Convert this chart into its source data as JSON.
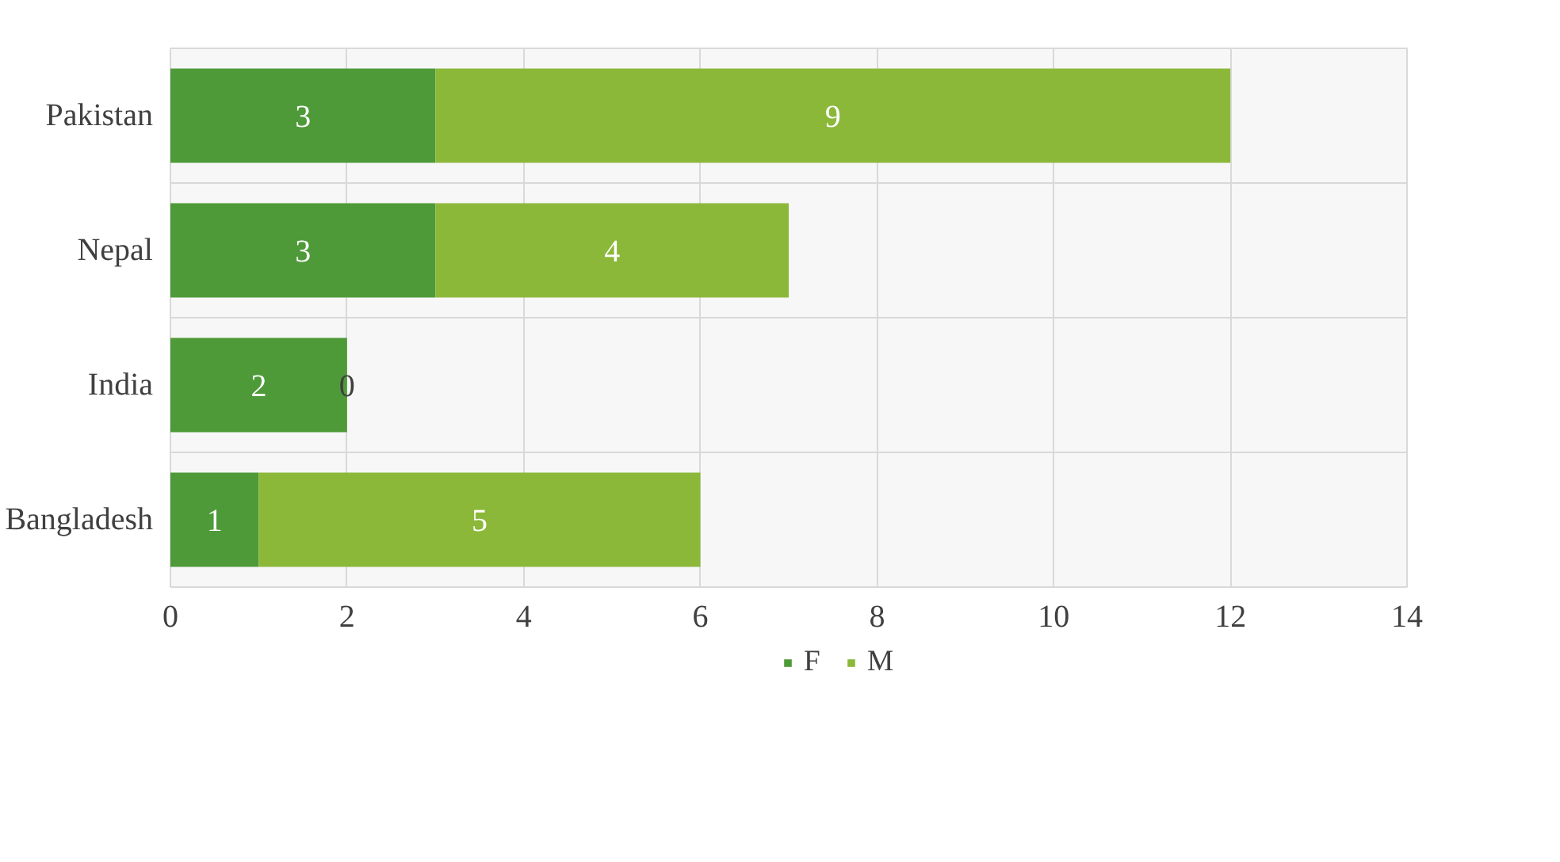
{
  "chart_data": {
    "type": "bar",
    "orientation": "horizontal",
    "stacked": true,
    "categories": [
      "Pakistan",
      "Nepal",
      "India",
      "Bangladesh"
    ],
    "series": [
      {
        "name": "F",
        "color": "#4e9a38",
        "values": [
          3,
          3,
          2,
          1
        ]
      },
      {
        "name": "M",
        "color": "#8cb83a",
        "values": [
          9,
          4,
          0,
          5
        ]
      }
    ],
    "xlim": [
      0,
      14
    ],
    "xticks": [
      0,
      2,
      4,
      6,
      8,
      10,
      12,
      14
    ],
    "grid": true,
    "legend": "bottom",
    "data_labels": true
  }
}
